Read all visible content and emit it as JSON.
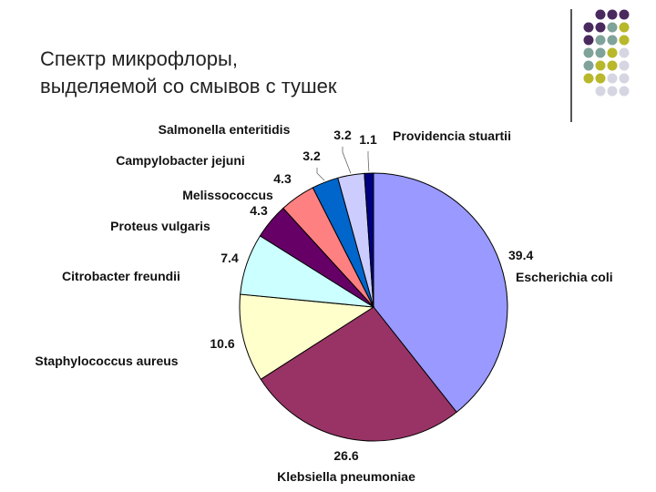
{
  "slide": {
    "title_lines": [
      "Спектр микрофлоры,",
      "выделяемой со смывов с тушек"
    ]
  },
  "decor": {
    "dot_colors": [
      "#4a2a5e",
      "#7fa39a",
      "#b8b82a",
      "#d6d6e2"
    ]
  },
  "chart_data": {
    "type": "pie",
    "title": "",
    "categories": [
      "Escherichia coli",
      "Klebsiella pneumoniae",
      "Staphylococcus aureus",
      "Citrobacter freundii",
      "Proteus vulgaris",
      "Melissococcus",
      "Campylobacter jejuni",
      "Salmonella enteritidis",
      "Providencia stuartii"
    ],
    "values": [
      39.4,
      26.6,
      10.6,
      7.4,
      4.3,
      4.3,
      3.2,
      3.2,
      1.1
    ],
    "value_labels": [
      "39.4",
      "26.6",
      "10.6",
      "7.4",
      "4.3",
      "4.3",
      "3.2",
      "3.2",
      "1.1"
    ],
    "colors": [
      "#9999ff",
      "#993366",
      "#ffffcc",
      "#ccffff",
      "#660066",
      "#ff8080",
      "#0066cc",
      "#ccccff",
      "#000080"
    ],
    "start_angle_deg": 0,
    "direction": "clockwise",
    "legend": "none"
  }
}
